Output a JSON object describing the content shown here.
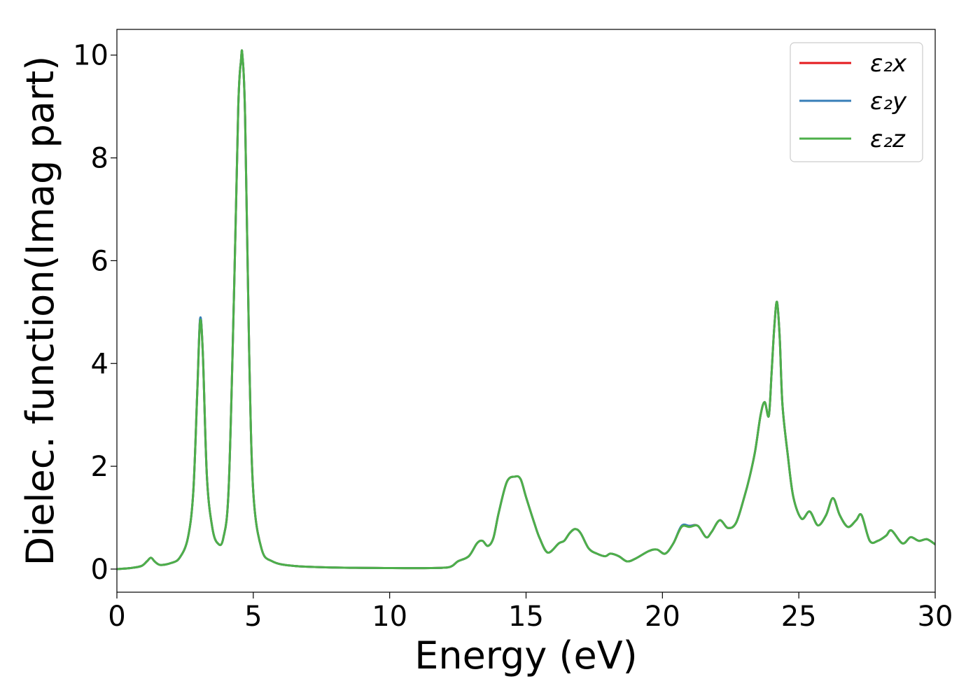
{
  "chart_data": {
    "type": "line",
    "xlabel": "Energy (eV)",
    "ylabel": "Dielec. function(Imag part)",
    "xlim": [
      0,
      30
    ],
    "ylim": [
      -0.45,
      10.5
    ],
    "xticks": [
      "0",
      "5",
      "10",
      "15",
      "20",
      "25",
      "30"
    ],
    "yticks": [
      "0",
      "2",
      "4",
      "6",
      "8",
      "10"
    ],
    "legend_position": "top-right",
    "grid": false,
    "x": [
      0,
      0.5,
      0.9,
      1.1,
      1.25,
      1.4,
      1.6,
      2.0,
      2.3,
      2.6,
      2.8,
      2.95,
      3.05,
      3.15,
      3.3,
      3.5,
      3.7,
      3.9,
      4.1,
      4.3,
      4.45,
      4.55,
      4.6,
      4.7,
      4.85,
      5.0,
      5.3,
      5.7,
      6.5,
      8,
      10,
      11.5,
      12.2,
      12.5,
      12.9,
      13.2,
      13.4,
      13.6,
      13.8,
      14.0,
      14.3,
      14.6,
      14.8,
      15.0,
      15.3,
      15.5,
      15.8,
      16.2,
      16.4,
      16.6,
      16.8,
      17.0,
      17.3,
      17.6,
      17.9,
      18.1,
      18.4,
      18.7,
      19.0,
      19.5,
      19.8,
      20.1,
      20.4,
      20.7,
      21.0,
      21.3,
      21.6,
      21.8,
      22.1,
      22.4,
      22.7,
      23.0,
      23.2,
      23.4,
      23.6,
      23.75,
      23.9,
      24.0,
      24.1,
      24.2,
      24.3,
      24.4,
      24.6,
      24.8,
      25.1,
      25.4,
      25.7,
      26.0,
      26.25,
      26.5,
      26.8,
      27.1,
      27.3,
      27.6,
      27.9,
      28.2,
      28.4,
      28.8,
      29.1,
      29.4,
      29.7,
      30
    ],
    "series": [
      {
        "name": "ε₂x",
        "color": "#e41a1c",
        "values": [
          0,
          0.02,
          0.06,
          0.15,
          0.22,
          0.14,
          0.08,
          0.12,
          0.22,
          0.6,
          1.5,
          3.5,
          4.85,
          4.2,
          1.8,
          0.8,
          0.5,
          0.6,
          1.6,
          5.5,
          9.0,
          9.9,
          10.0,
          8.8,
          4.2,
          1.5,
          0.4,
          0.15,
          0.06,
          0.03,
          0.02,
          0.02,
          0.04,
          0.15,
          0.25,
          0.5,
          0.55,
          0.45,
          0.6,
          1.1,
          1.7,
          1.8,
          1.75,
          1.4,
          0.9,
          0.6,
          0.32,
          0.5,
          0.55,
          0.7,
          0.78,
          0.7,
          0.4,
          0.3,
          0.25,
          0.3,
          0.25,
          0.15,
          0.2,
          0.35,
          0.38,
          0.3,
          0.5,
          0.82,
          0.84,
          0.84,
          0.62,
          0.72,
          0.95,
          0.8,
          0.9,
          1.4,
          1.8,
          2.3,
          3.0,
          3.25,
          2.98,
          3.8,
          4.7,
          5.2,
          4.5,
          3.2,
          2.2,
          1.4,
          0.98,
          1.12,
          0.85,
          1.05,
          1.38,
          1.05,
          0.82,
          0.95,
          1.05,
          0.55,
          0.55,
          0.65,
          0.75,
          0.5,
          0.62,
          0.55,
          0.58,
          0.48
        ]
      },
      {
        "name": "ε₂y",
        "color": "#377eb8",
        "values": [
          0,
          0.02,
          0.06,
          0.15,
          0.22,
          0.14,
          0.08,
          0.12,
          0.22,
          0.6,
          1.5,
          3.5,
          4.87,
          4.2,
          1.8,
          0.8,
          0.5,
          0.6,
          1.6,
          5.5,
          9.0,
          9.9,
          10.0,
          8.8,
          4.2,
          1.5,
          0.4,
          0.15,
          0.06,
          0.03,
          0.02,
          0.02,
          0.04,
          0.15,
          0.25,
          0.5,
          0.55,
          0.45,
          0.6,
          1.1,
          1.7,
          1.8,
          1.75,
          1.4,
          0.9,
          0.6,
          0.32,
          0.5,
          0.55,
          0.7,
          0.78,
          0.7,
          0.4,
          0.3,
          0.25,
          0.3,
          0.25,
          0.15,
          0.2,
          0.35,
          0.38,
          0.3,
          0.5,
          0.84,
          0.84,
          0.84,
          0.62,
          0.72,
          0.95,
          0.8,
          0.9,
          1.4,
          1.8,
          2.3,
          3.0,
          3.25,
          2.98,
          3.8,
          4.7,
          5.2,
          4.5,
          3.2,
          2.2,
          1.4,
          0.98,
          1.12,
          0.85,
          1.05,
          1.38,
          1.05,
          0.82,
          0.95,
          1.05,
          0.55,
          0.55,
          0.65,
          0.75,
          0.5,
          0.62,
          0.55,
          0.58,
          0.48
        ]
      },
      {
        "name": "ε₂z",
        "color": "#4daf4a",
        "values": [
          0,
          0.02,
          0.06,
          0.15,
          0.22,
          0.14,
          0.08,
          0.12,
          0.22,
          0.6,
          1.5,
          3.5,
          4.82,
          4.2,
          1.8,
          0.8,
          0.5,
          0.6,
          1.6,
          5.5,
          9.0,
          9.9,
          10.0,
          8.8,
          4.2,
          1.5,
          0.4,
          0.15,
          0.06,
          0.03,
          0.02,
          0.02,
          0.04,
          0.15,
          0.25,
          0.5,
          0.55,
          0.45,
          0.6,
          1.1,
          1.7,
          1.8,
          1.75,
          1.4,
          0.9,
          0.6,
          0.32,
          0.5,
          0.55,
          0.7,
          0.78,
          0.7,
          0.4,
          0.3,
          0.25,
          0.3,
          0.25,
          0.15,
          0.2,
          0.35,
          0.38,
          0.3,
          0.5,
          0.82,
          0.82,
          0.84,
          0.62,
          0.72,
          0.95,
          0.8,
          0.9,
          1.4,
          1.8,
          2.3,
          3.0,
          3.25,
          2.98,
          3.8,
          4.7,
          5.2,
          4.5,
          3.2,
          2.2,
          1.4,
          0.98,
          1.12,
          0.85,
          1.05,
          1.38,
          1.05,
          0.82,
          0.95,
          1.05,
          0.55,
          0.55,
          0.65,
          0.75,
          0.5,
          0.62,
          0.55,
          0.58,
          0.48
        ]
      }
    ]
  }
}
